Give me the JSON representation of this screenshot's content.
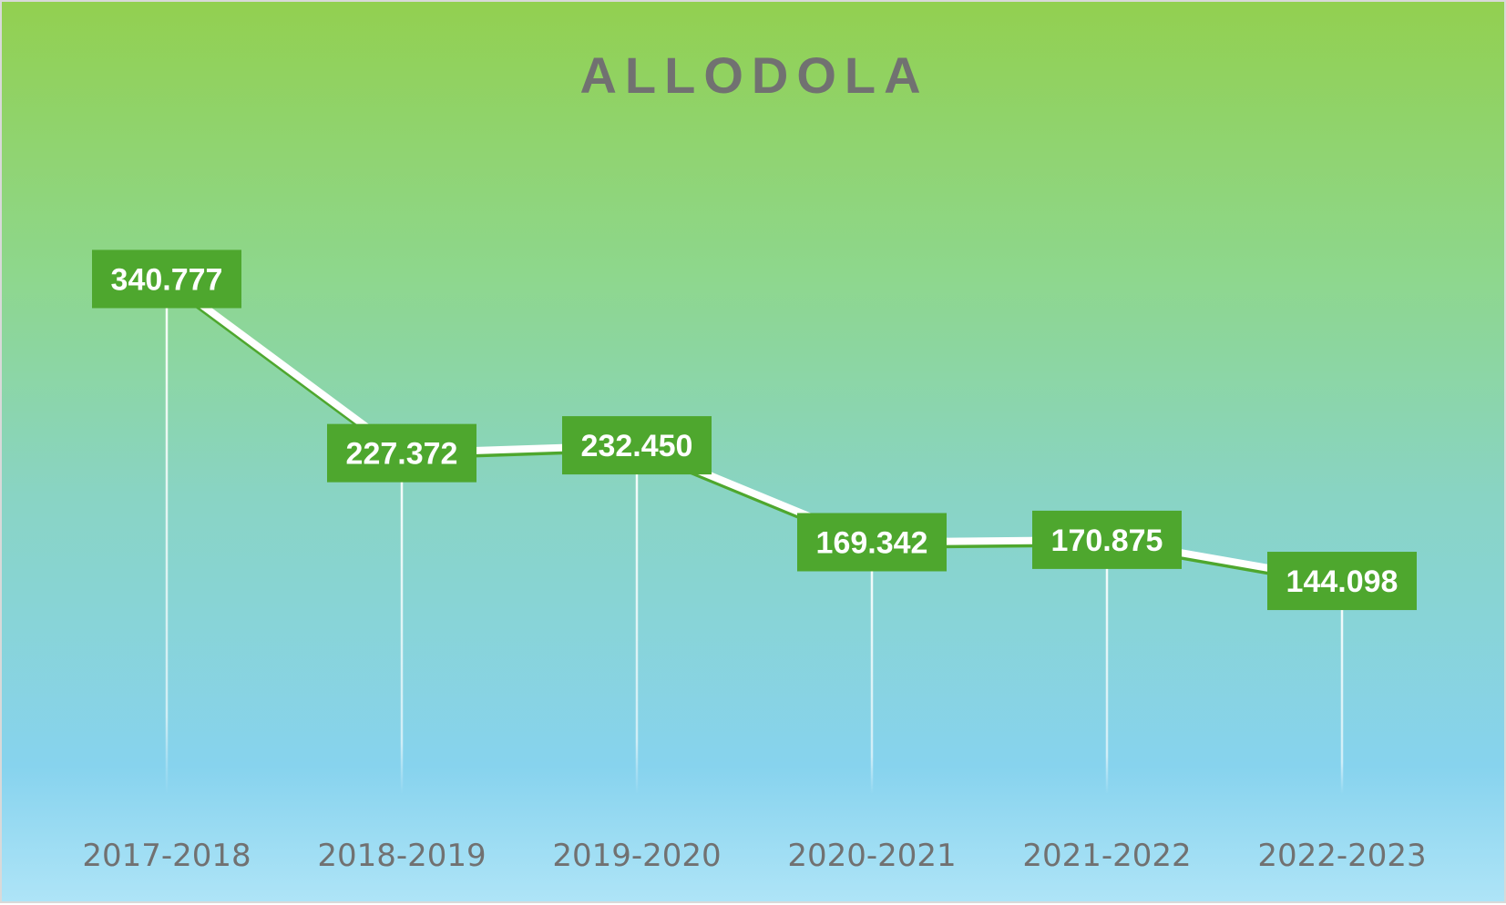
{
  "chart_data": {
    "type": "line",
    "title": "ALLODOLA",
    "xlabel": "",
    "ylabel": "",
    "categories": [
      "2017-2018",
      "2018-2019",
      "2019-2020",
      "2020-2021",
      "2021-2022",
      "2022-2023"
    ],
    "series": [
      {
        "values": [
          340.777,
          227.372,
          232.45,
          169.342,
          170.875,
          144.098
        ],
        "labels": [
          "340.777",
          "227.372",
          "232.450",
          "169.342",
          "170.875",
          "144.098"
        ]
      }
    ],
    "ylim": [
      0,
      500
    ],
    "grid": false,
    "legend": "none",
    "drop_lines": true,
    "colors": {
      "line": "#ffffff",
      "line_shadow": "#4ea72e",
      "label_fill": "#4ea72e",
      "label_text": "#ffffff",
      "axis_text": "#717171",
      "background_top": "#92d050",
      "background_bottom": "#aee4f7"
    }
  }
}
